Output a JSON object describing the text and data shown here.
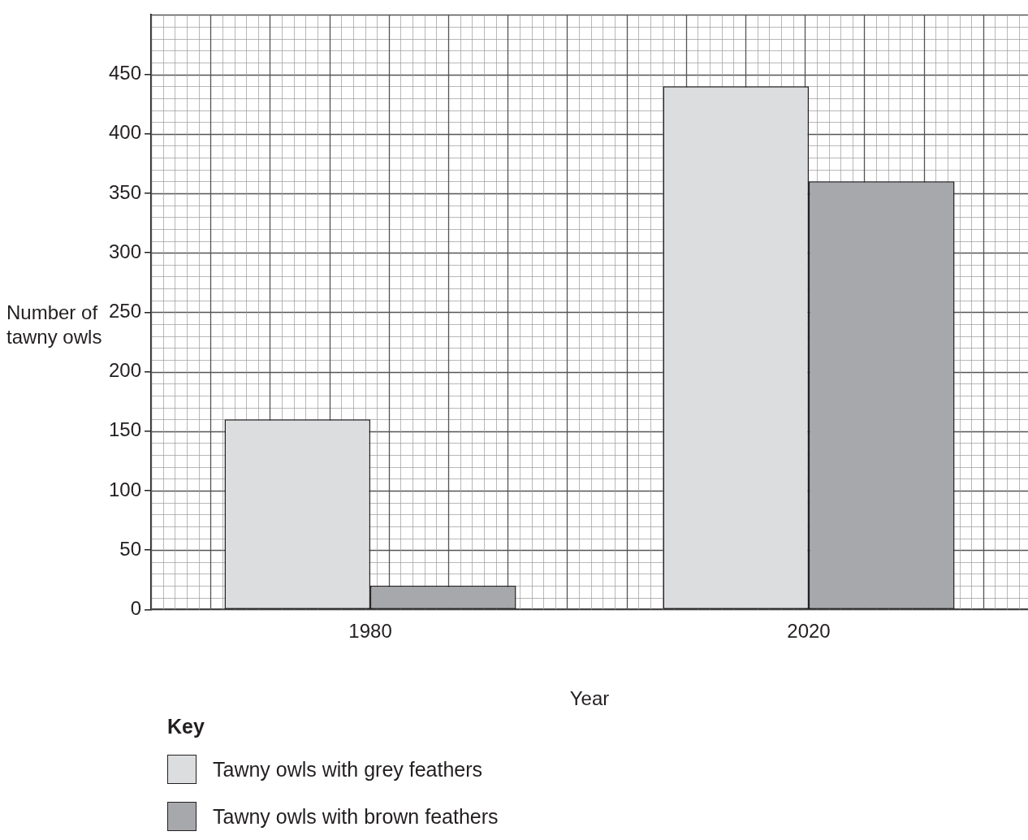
{
  "chart_data": {
    "type": "bar",
    "categories": [
      "1980",
      "2020"
    ],
    "series": [
      {
        "name": "Tawny owls with grey feathers",
        "color": "#dcdddf",
        "values": [
          160,
          440
        ]
      },
      {
        "name": "Tawny owls with brown feathers",
        "color": "#a7a8ab",
        "values": [
          20,
          360
        ]
      }
    ],
    "xlabel": "Year",
    "ylabel": "Number of tawny owls",
    "legend_title": "Key",
    "legend": "bottom left",
    "ylim": [
      0,
      500
    ],
    "yticks": [
      0,
      50,
      100,
      150,
      200,
      250,
      300,
      350,
      400,
      450
    ],
    "grid": true
  }
}
